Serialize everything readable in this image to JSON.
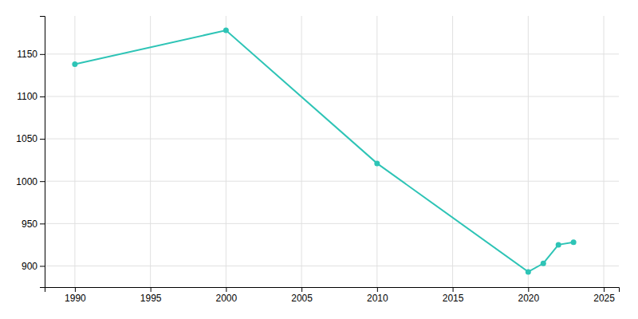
{
  "chart_data": {
    "type": "line",
    "x": [
      1990,
      2000,
      2010,
      2020,
      2021,
      2022,
      2023
    ],
    "values": [
      1138,
      1178,
      1021,
      893,
      903,
      925,
      928
    ],
    "color": "#2ec4b6",
    "marker": "circle",
    "xlim": [
      1988,
      2026
    ],
    "ylim": [
      875,
      1195
    ],
    "xticks": [
      1990,
      1995,
      2000,
      2005,
      2010,
      2015,
      2020,
      2025
    ],
    "yticks": [
      900,
      950,
      1000,
      1050,
      1100,
      1150
    ],
    "grid": true
  }
}
